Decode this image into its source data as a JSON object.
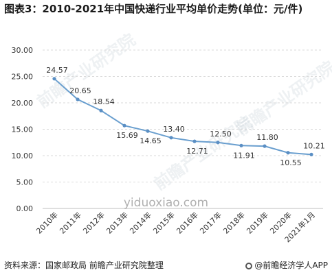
{
  "title": "图表3：2010-2021年中国快递行业平均单价走势(单位：元/件)",
  "source": "资料来源：国家邮政局 前瞻产业研究院整理",
  "brand": "@前瞻经济学人APP",
  "site_watermark": "yiduoxiao.com",
  "watermark_text": "前瞻产业研究院",
  "colors": {
    "line": "#6a9fcf",
    "marker": "#5b8fc4",
    "grid": "#d9d9d9",
    "axis": "#bfbfbf"
  },
  "chart_data": {
    "type": "line",
    "title": "图表3：2010-2021年中国快递行业平均单价走势(单位：元/件)",
    "xlabel": "",
    "ylabel": "",
    "categories": [
      "2010年",
      "2011年",
      "2012年",
      "2013年",
      "2014年",
      "2015年",
      "2016年",
      "2017年",
      "2018年",
      "2019年",
      "2020年",
      "2021年1月"
    ],
    "values": [
      24.57,
      20.65,
      18.54,
      15.69,
      14.65,
      13.4,
      12.71,
      12.5,
      11.91,
      11.8,
      10.55,
      10.21
    ],
    "value_labels": [
      "24.57",
      "20.65",
      "18.54",
      "15.69",
      "14.65",
      "13.40",
      "12.71",
      "12.50",
      "11.91",
      "11.80",
      "10.55",
      "10.21"
    ],
    "label_position": [
      "above",
      "above",
      "above",
      "below",
      "below",
      "above",
      "below",
      "above",
      "below",
      "above",
      "below",
      "above"
    ],
    "yticks": [
      "0.00",
      "5.00",
      "10.00",
      "15.00",
      "20.00",
      "25.00",
      "30.00"
    ],
    "ylim": [
      0,
      30
    ],
    "grid": true,
    "legend": "none"
  }
}
